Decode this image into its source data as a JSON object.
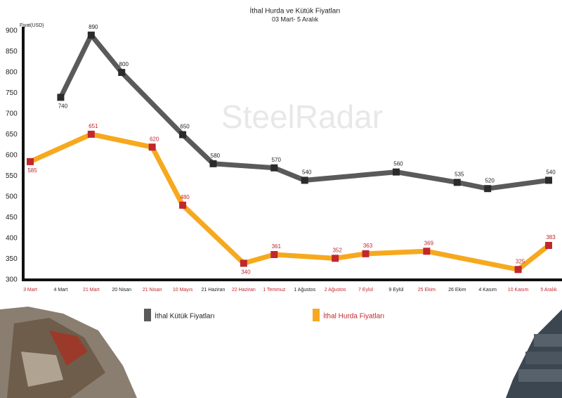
{
  "chart_data": {
    "type": "line",
    "title": "İthal Hurda ve Kütük Fiyatları",
    "subtitle": "03 Mart- 5 Aralık",
    "y_label": "Fiyat(USD)",
    "watermark": "SteelRadar",
    "categories": [
      "3 Mart",
      "4 Mart",
      "21 Mart",
      "20 Nisan",
      "21 Nisan",
      "10 Mayıs",
      "21 Haziran",
      "22 Haziran",
      "1 Temmuz",
      "1 Ağustos",
      "2 Ağustos",
      "7 Eylül",
      "9 Eylül",
      "25 Ekim",
      "26 Ekim",
      "4 Kasım",
      "10 Kasım",
      "5 Aralık"
    ],
    "series": [
      {
        "name": "İthal Kütük Fiyatları",
        "color": "#5a5a5a",
        "marker_color": "#2b2b2b",
        "label_color": "#222222",
        "values": [
          null,
          740,
          890,
          800,
          null,
          650,
          580,
          null,
          570,
          540,
          null,
          null,
          560,
          null,
          535,
          520,
          null,
          540
        ]
      },
      {
        "name": "İthal Hurda Fiyatları",
        "color": "#f6a91e",
        "marker_color": "#c1272d",
        "label_color": "#c1272d",
        "values": [
          585,
          null,
          651,
          null,
          620,
          480,
          null,
          340,
          361,
          null,
          352,
          363,
          null,
          369,
          null,
          null,
          325,
          383
        ]
      }
    ],
    "ylim": [
      300,
      900
    ],
    "yticks": [
      300,
      350,
      400,
      450,
      500,
      550,
      600,
      650,
      700,
      750,
      800,
      850,
      900
    ]
  }
}
